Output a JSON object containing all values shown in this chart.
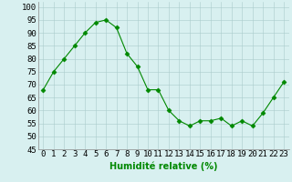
{
  "x": [
    0,
    1,
    2,
    3,
    4,
    5,
    6,
    7,
    8,
    9,
    10,
    11,
    12,
    13,
    14,
    15,
    16,
    17,
    18,
    19,
    20,
    21,
    22,
    23
  ],
  "y": [
    68,
    75,
    80,
    85,
    90,
    94,
    95,
    92,
    82,
    77,
    68,
    68,
    60,
    56,
    54,
    56,
    56,
    57,
    54,
    56,
    54,
    59,
    65,
    71
  ],
  "line_color": "#008800",
  "marker_color": "#008800",
  "bg_color": "#d8f0f0",
  "grid_color": "#aacccc",
  "xlabel": "Humidité relative (%)",
  "xlim": [
    -0.5,
    23.5
  ],
  "ylim": [
    45,
    102
  ],
  "yticks": [
    45,
    50,
    55,
    60,
    65,
    70,
    75,
    80,
    85,
    90,
    95,
    100
  ],
  "xticks": [
    0,
    1,
    2,
    3,
    4,
    5,
    6,
    7,
    8,
    9,
    10,
    11,
    12,
    13,
    14,
    15,
    16,
    17,
    18,
    19,
    20,
    21,
    22,
    23
  ],
  "xlabel_fontsize": 7,
  "tick_fontsize": 6.5
}
